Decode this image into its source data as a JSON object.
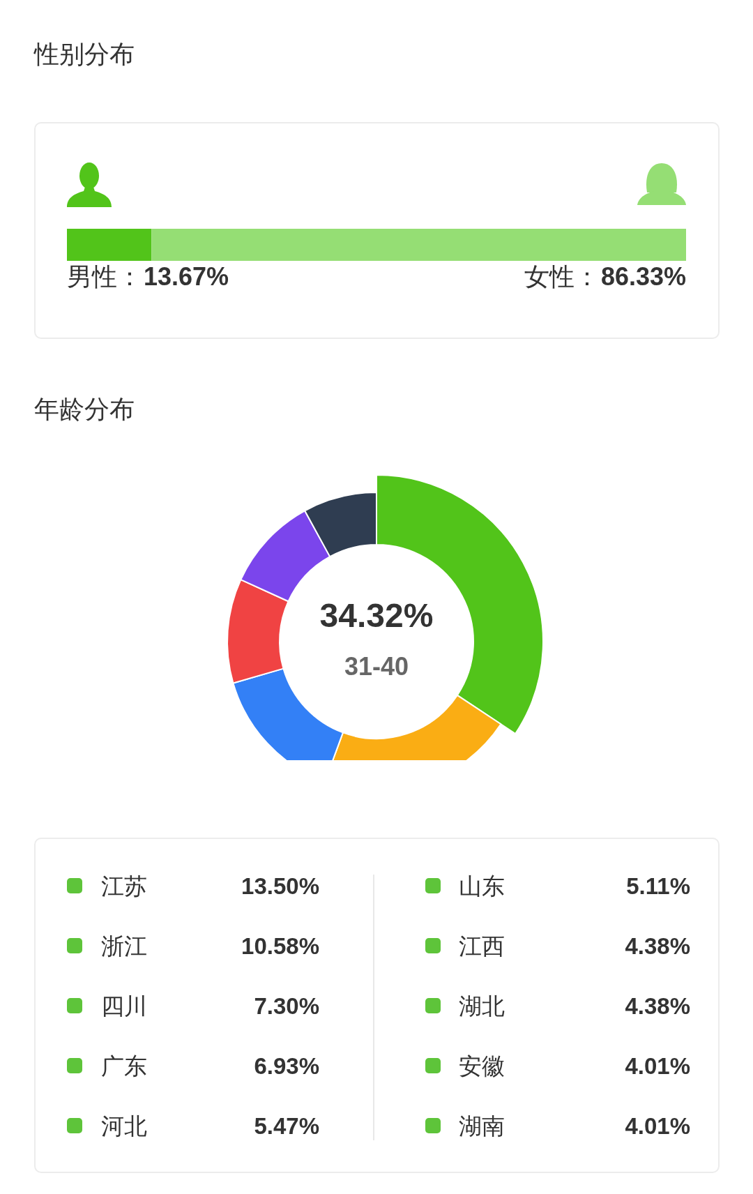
{
  "chart_data": [
    {
      "type": "bar",
      "title": "性别分布",
      "orientation": "horizontal",
      "stacked": true,
      "categories": [
        null
      ],
      "series": [
        {
          "name": "男性：",
          "color": "#52c41a",
          "values": [
            13.67
          ],
          "value_labels": [
            "13.67%"
          ]
        },
        {
          "name": "女性：",
          "color": "#95de74",
          "values": [
            86.33
          ],
          "value_labels": [
            "86.33%"
          ]
        }
      ]
    },
    {
      "type": "donut",
      "title": "年龄分布",
      "categories": [
        "31-40",
        null,
        null,
        null,
        null,
        null
      ],
      "values": [
        34.32,
        21.3,
        14.9,
        11.3,
        10.2,
        7.98
      ],
      "value_labels": [
        "34.32%",
        null,
        null,
        null,
        null,
        null
      ],
      "colors": [
        "#52c41a",
        "#faad14",
        "#3380f6",
        "#f04343",
        "#7b45ec",
        "#2f3d51"
      ]
    },
    {
      "type": "other",
      "categories": [
        "江苏",
        "浙江",
        "四川",
        "广东",
        "河北",
        "山东",
        "江西",
        "湖北",
        "安徽",
        "湖南"
      ],
      "values": [
        13.5,
        10.58,
        7.3,
        6.93,
        5.47,
        5.11,
        4.38,
        4.38,
        4.01,
        4.01
      ],
      "value_labels": [
        "13.50%",
        "10.58%",
        "7.30%",
        "6.93%",
        "5.47%",
        "5.11%",
        "4.38%",
        "4.38%",
        "4.01%",
        "4.01%"
      ],
      "color": "#5ec43a"
    }
  ]
}
